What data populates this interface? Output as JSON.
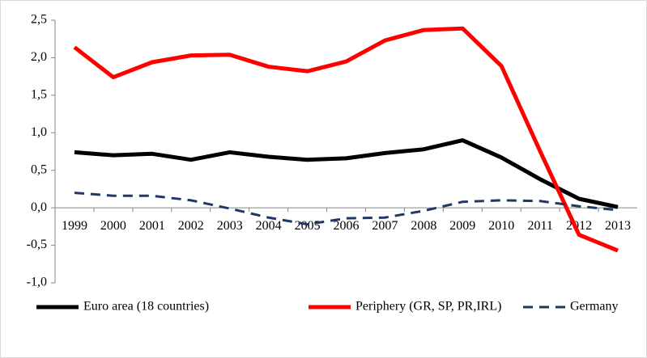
{
  "chart_data": {
    "type": "line",
    "categories": [
      "1999",
      "2000",
      "2001",
      "2002",
      "2003",
      "2004",
      "2005",
      "2006",
      "2007",
      "2008",
      "2009",
      "2010",
      "2011",
      "2012",
      "2013"
    ],
    "series": [
      {
        "name": "Euro area (18 countries)",
        "color": "#000000",
        "dash": false,
        "values": [
          0.74,
          0.7,
          0.72,
          0.64,
          0.74,
          0.68,
          0.64,
          0.66,
          0.73,
          0.78,
          0.9,
          0.67,
          0.38,
          0.12,
          0.01
        ]
      },
      {
        "name": "Periphery (GR, SP, PR,IRL)",
        "color": "#ff0000",
        "dash": false,
        "values": [
          2.14,
          1.74,
          1.94,
          2.03,
          2.04,
          1.88,
          1.82,
          1.95,
          2.23,
          2.37,
          2.39,
          1.89,
          0.75,
          -0.36,
          -0.57
        ]
      },
      {
        "name": "Germany",
        "color": "#1f3864",
        "dash": true,
        "values": [
          0.2,
          0.16,
          0.16,
          0.1,
          -0.01,
          -0.13,
          -0.22,
          -0.14,
          -0.13,
          -0.04,
          0.08,
          0.1,
          0.09,
          0.02,
          -0.03
        ]
      }
    ],
    "ylim": [
      -1.0,
      2.5
    ],
    "yticks": [
      {
        "value": -1.0,
        "label": "-1,0"
      },
      {
        "value": -0.5,
        "label": "-0,5"
      },
      {
        "value": 0.0,
        "label": "0,0"
      },
      {
        "value": 0.5,
        "label": "0,5"
      },
      {
        "value": 1.0,
        "label": "1,0"
      },
      {
        "value": 1.5,
        "label": "1,5"
      },
      {
        "value": 2.0,
        "label": "2,0"
      },
      {
        "value": 2.5,
        "label": "2,5"
      }
    ],
    "legend": "bottom"
  }
}
